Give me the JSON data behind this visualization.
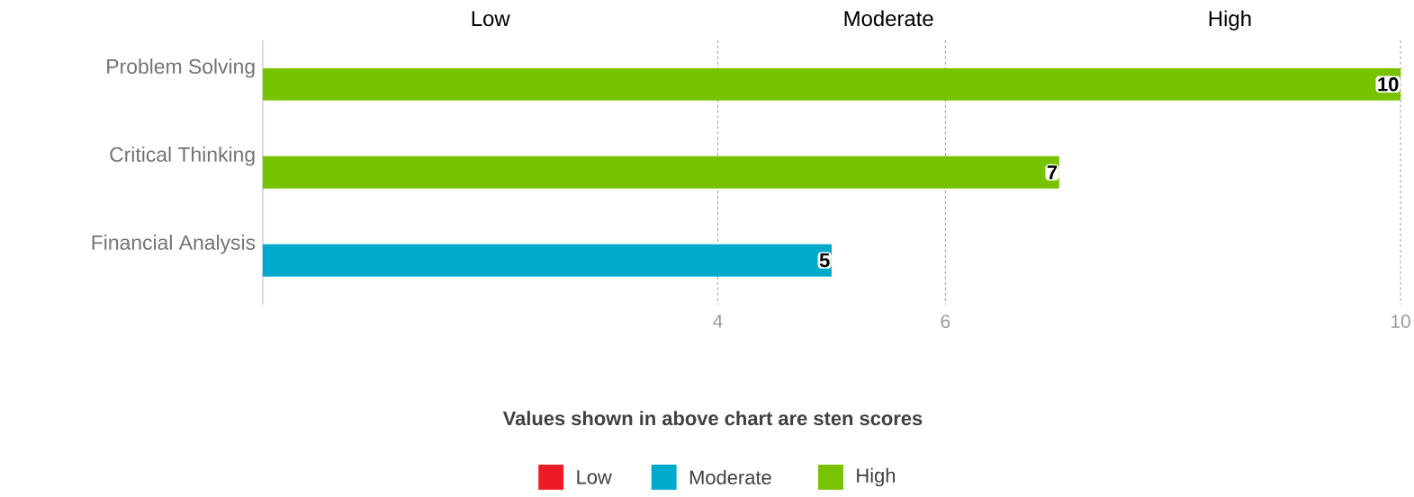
{
  "chart_data": {
    "type": "bar",
    "orientation": "horizontal",
    "categories": [
      "Problem Solving",
      "Critical Thinking",
      "Financial Analysis"
    ],
    "series": [
      {
        "name": "Low",
        "color": "#ed1c24",
        "values": [
          null,
          null,
          null
        ]
      },
      {
        "name": "Moderate",
        "color": "#00aacc",
        "values": [
          null,
          null,
          5
        ]
      },
      {
        "name": "High",
        "color": "#77c300",
        "values": [
          10,
          7,
          null
        ]
      }
    ],
    "xlim": [
      0,
      10
    ],
    "xticks": [
      4,
      6,
      10
    ],
    "grid": "x",
    "data_labels": true,
    "legend": "bottom",
    "annotations": [
      "Low",
      "Moderate",
      "High",
      "Values shown in above chart are sten scores"
    ]
  }
}
